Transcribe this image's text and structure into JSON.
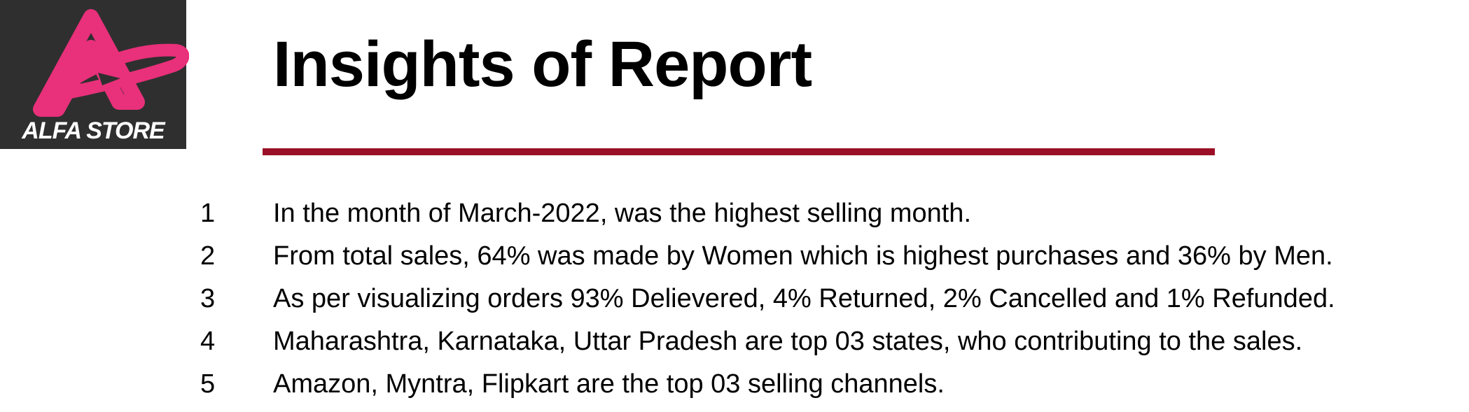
{
  "logo": {
    "text": "ALFA STORE",
    "icon": "alfa-store-logo-icon",
    "colors": {
      "background": "#2f2f2f",
      "accent": "#e9307a"
    }
  },
  "title": "Insights of Report",
  "rule_color": "#9a0f25",
  "insights": [
    {
      "number": "1",
      "text": "In the month of March-2022, was the highest selling month."
    },
    {
      "number": "2",
      "text": "From total sales, 64% was made by Women which is highest purchases and 36% by Men."
    },
    {
      "number": "3",
      "text": "As per visualizing orders 93% Delievered, 4% Returned, 2% Cancelled and 1% Refunded."
    },
    {
      "number": "4",
      "text": "Maharashtra, Karnataka, Uttar Pradesh are top 03 states, who contributing to the sales."
    },
    {
      "number": "5",
      "text": "Amazon, Myntra, Flipkart are the top 03 selling channels."
    }
  ]
}
